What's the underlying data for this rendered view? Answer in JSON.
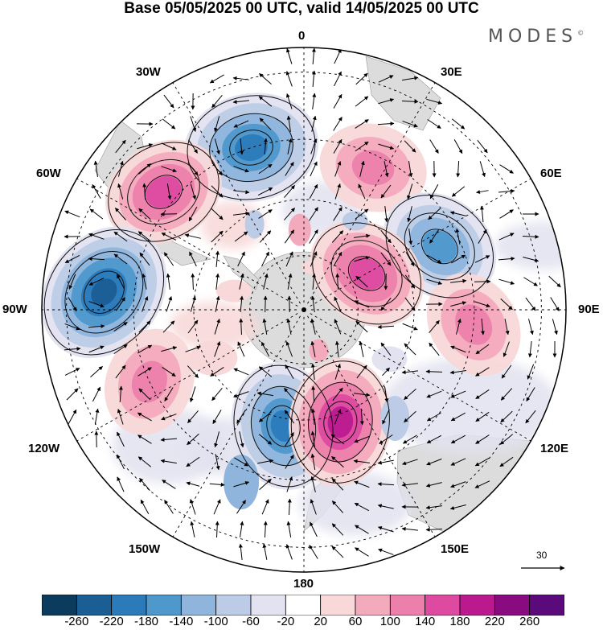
{
  "title": "Base 05/05/2025 00 UTC, valid 14/05/2025 00 UTC",
  "brand": {
    "text": "MODES",
    "mark": "©"
  },
  "map": {
    "projection": "south-polar-stereographic",
    "longitude_labels": {
      "top": "0",
      "top_left": "30W",
      "top_right": "30E",
      "upper_left": "60W",
      "upper_right": "60E",
      "left": "90W",
      "right": "90E",
      "lower_left": "120W",
      "lower_right": "120E",
      "bottom_left": "150W",
      "bottom_right": "150E",
      "bottom": "180"
    },
    "anomaly_centers": [
      {
        "lon": -18,
        "lat": -45,
        "sign": "negative",
        "value": -200
      },
      {
        "lon": 26,
        "lat": -48,
        "sign": "positive",
        "value": 120
      },
      {
        "lon": -50,
        "lat": -42,
        "sign": "positive",
        "value": 160
      },
      {
        "lon": -85,
        "lat": -38,
        "sign": "negative",
        "value": -220
      },
      {
        "lon": 65,
        "lat": -50,
        "sign": "negative",
        "value": -160
      },
      {
        "lon": 60,
        "lat": -70,
        "sign": "positive",
        "value": 160
      },
      {
        "lon": 95,
        "lat": -45,
        "sign": "positive",
        "value": 120
      },
      {
        "lon": -115,
        "lat": -45,
        "sign": "positive",
        "value": 120
      },
      {
        "lon": -170,
        "lat": -58,
        "sign": "negative",
        "value": -180
      },
      {
        "lon": 162,
        "lat": -58,
        "sign": "positive",
        "value": 180
      }
    ],
    "reference_vector": {
      "label": "30"
    }
  },
  "colorbar": {
    "levels": [
      "-260",
      "-220",
      "-180",
      "-140",
      "-100",
      "-60",
      "-20",
      "20",
      "60",
      "100",
      "140",
      "180",
      "220",
      "260"
    ],
    "colors": [
      "#0b3c5d",
      "#1a5e94",
      "#2b7bba",
      "#4f98cc",
      "#8fb5dd",
      "#bccce6",
      "#e2e2f0",
      "#ffffff",
      "#f8d8d8",
      "#f3aabd",
      "#ec7fac",
      "#dd4aa0",
      "#bb1a8f",
      "#8a0b80",
      "#5a0a7a"
    ]
  }
}
